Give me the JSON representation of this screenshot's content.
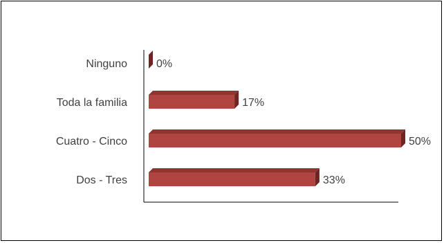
{
  "chart_data": {
    "type": "bar",
    "orientation": "horizontal",
    "style": "3d",
    "categories": [
      "Ninguno",
      "Toda la familia",
      "Cuatro - Cinco",
      "Dos - Tres"
    ],
    "values": [
      0,
      17,
      50,
      33
    ],
    "data_labels": [
      "0%",
      "17%",
      "50%",
      "33%"
    ],
    "xlim": [
      0,
      50
    ],
    "grid": false,
    "legend": "none",
    "colors": {
      "bar_front": "#b04440",
      "bar_top": "#8f3431",
      "bar_side": "#6e2422",
      "axis": "#000000",
      "text": "#404040"
    }
  }
}
